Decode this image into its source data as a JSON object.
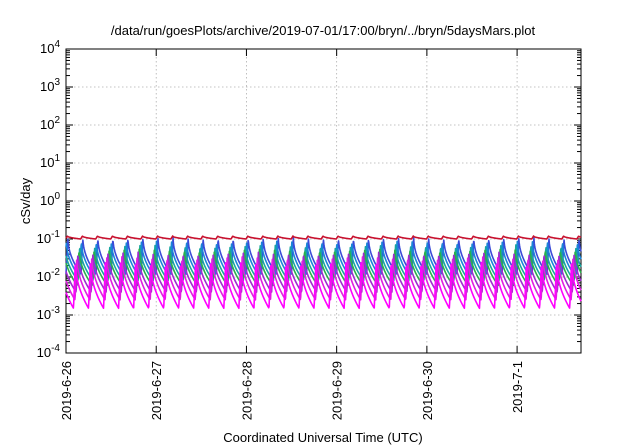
{
  "chart_data": {
    "type": "line",
    "title": "/data/run/goesPlots/archive/2019-07-01/17:00/bryn/../bryn/5daysMars.plot",
    "xlabel": "Coordinated Universal Time (UTC)",
    "ylabel": "cSv/day",
    "yscale": "log",
    "ylim": [
      0.0001,
      10000
    ],
    "x_range_days": [
      "2019-06-26 00:00",
      "2019-07-01 17:00"
    ],
    "x_ticks": [
      {
        "label": "2019-6-26",
        "date": "2019-06-26"
      },
      {
        "label": "2019-6-27",
        "date": "2019-06-27"
      },
      {
        "label": "2019-6-28",
        "date": "2019-06-28"
      },
      {
        "label": "2019-6-29",
        "date": "2019-06-29"
      },
      {
        "label": "2019-6-30",
        "date": "2019-06-30"
      },
      {
        "label": "2019-7-1",
        "date": "2019-07-01"
      }
    ],
    "y_ticks": [
      {
        "exp": "-4",
        "value": 0.0001
      },
      {
        "exp": "-3",
        "value": 0.001
      },
      {
        "exp": "-2",
        "value": 0.01
      },
      {
        "exp": "-1",
        "value": 0.1
      },
      {
        "exp": "0",
        "value": 1
      },
      {
        "exp": "1",
        "value": 10
      },
      {
        "exp": "2",
        "value": 100
      },
      {
        "exp": "3",
        "value": 1000
      },
      {
        "exp": "4",
        "value": 10000
      }
    ],
    "grid": true,
    "legend": "none",
    "oscillation_period_hours": 4,
    "series": [
      {
        "color": "#3a4bd8",
        "peak": 0.11,
        "trough": 0.012,
        "phase_hours": 0.0
      },
      {
        "color": "#1a86d8",
        "peak": 0.09,
        "trough": 0.01,
        "phase_hours": 0.4
      },
      {
        "color": "#18a6a0",
        "peak": 0.07,
        "trough": 0.008,
        "phase_hours": 0.8
      },
      {
        "color": "#2bb04a",
        "peak": 0.055,
        "trough": 0.006,
        "phase_hours": 1.0
      },
      {
        "color": "#a02bd0",
        "peak": 0.045,
        "trough": 0.004,
        "phase_hours": 1.3
      },
      {
        "color": "#e020e0",
        "peak": 0.035,
        "trough": 0.0025,
        "phase_hours": 1.6
      },
      {
        "color": "#ff00ff",
        "peak": 0.025,
        "trough": 0.0015,
        "phase_hours": 2.0
      },
      {
        "color": "#c8102e",
        "peak": 0.12,
        "trough": 0.1,
        "phase_hours": 0.1
      }
    ]
  }
}
